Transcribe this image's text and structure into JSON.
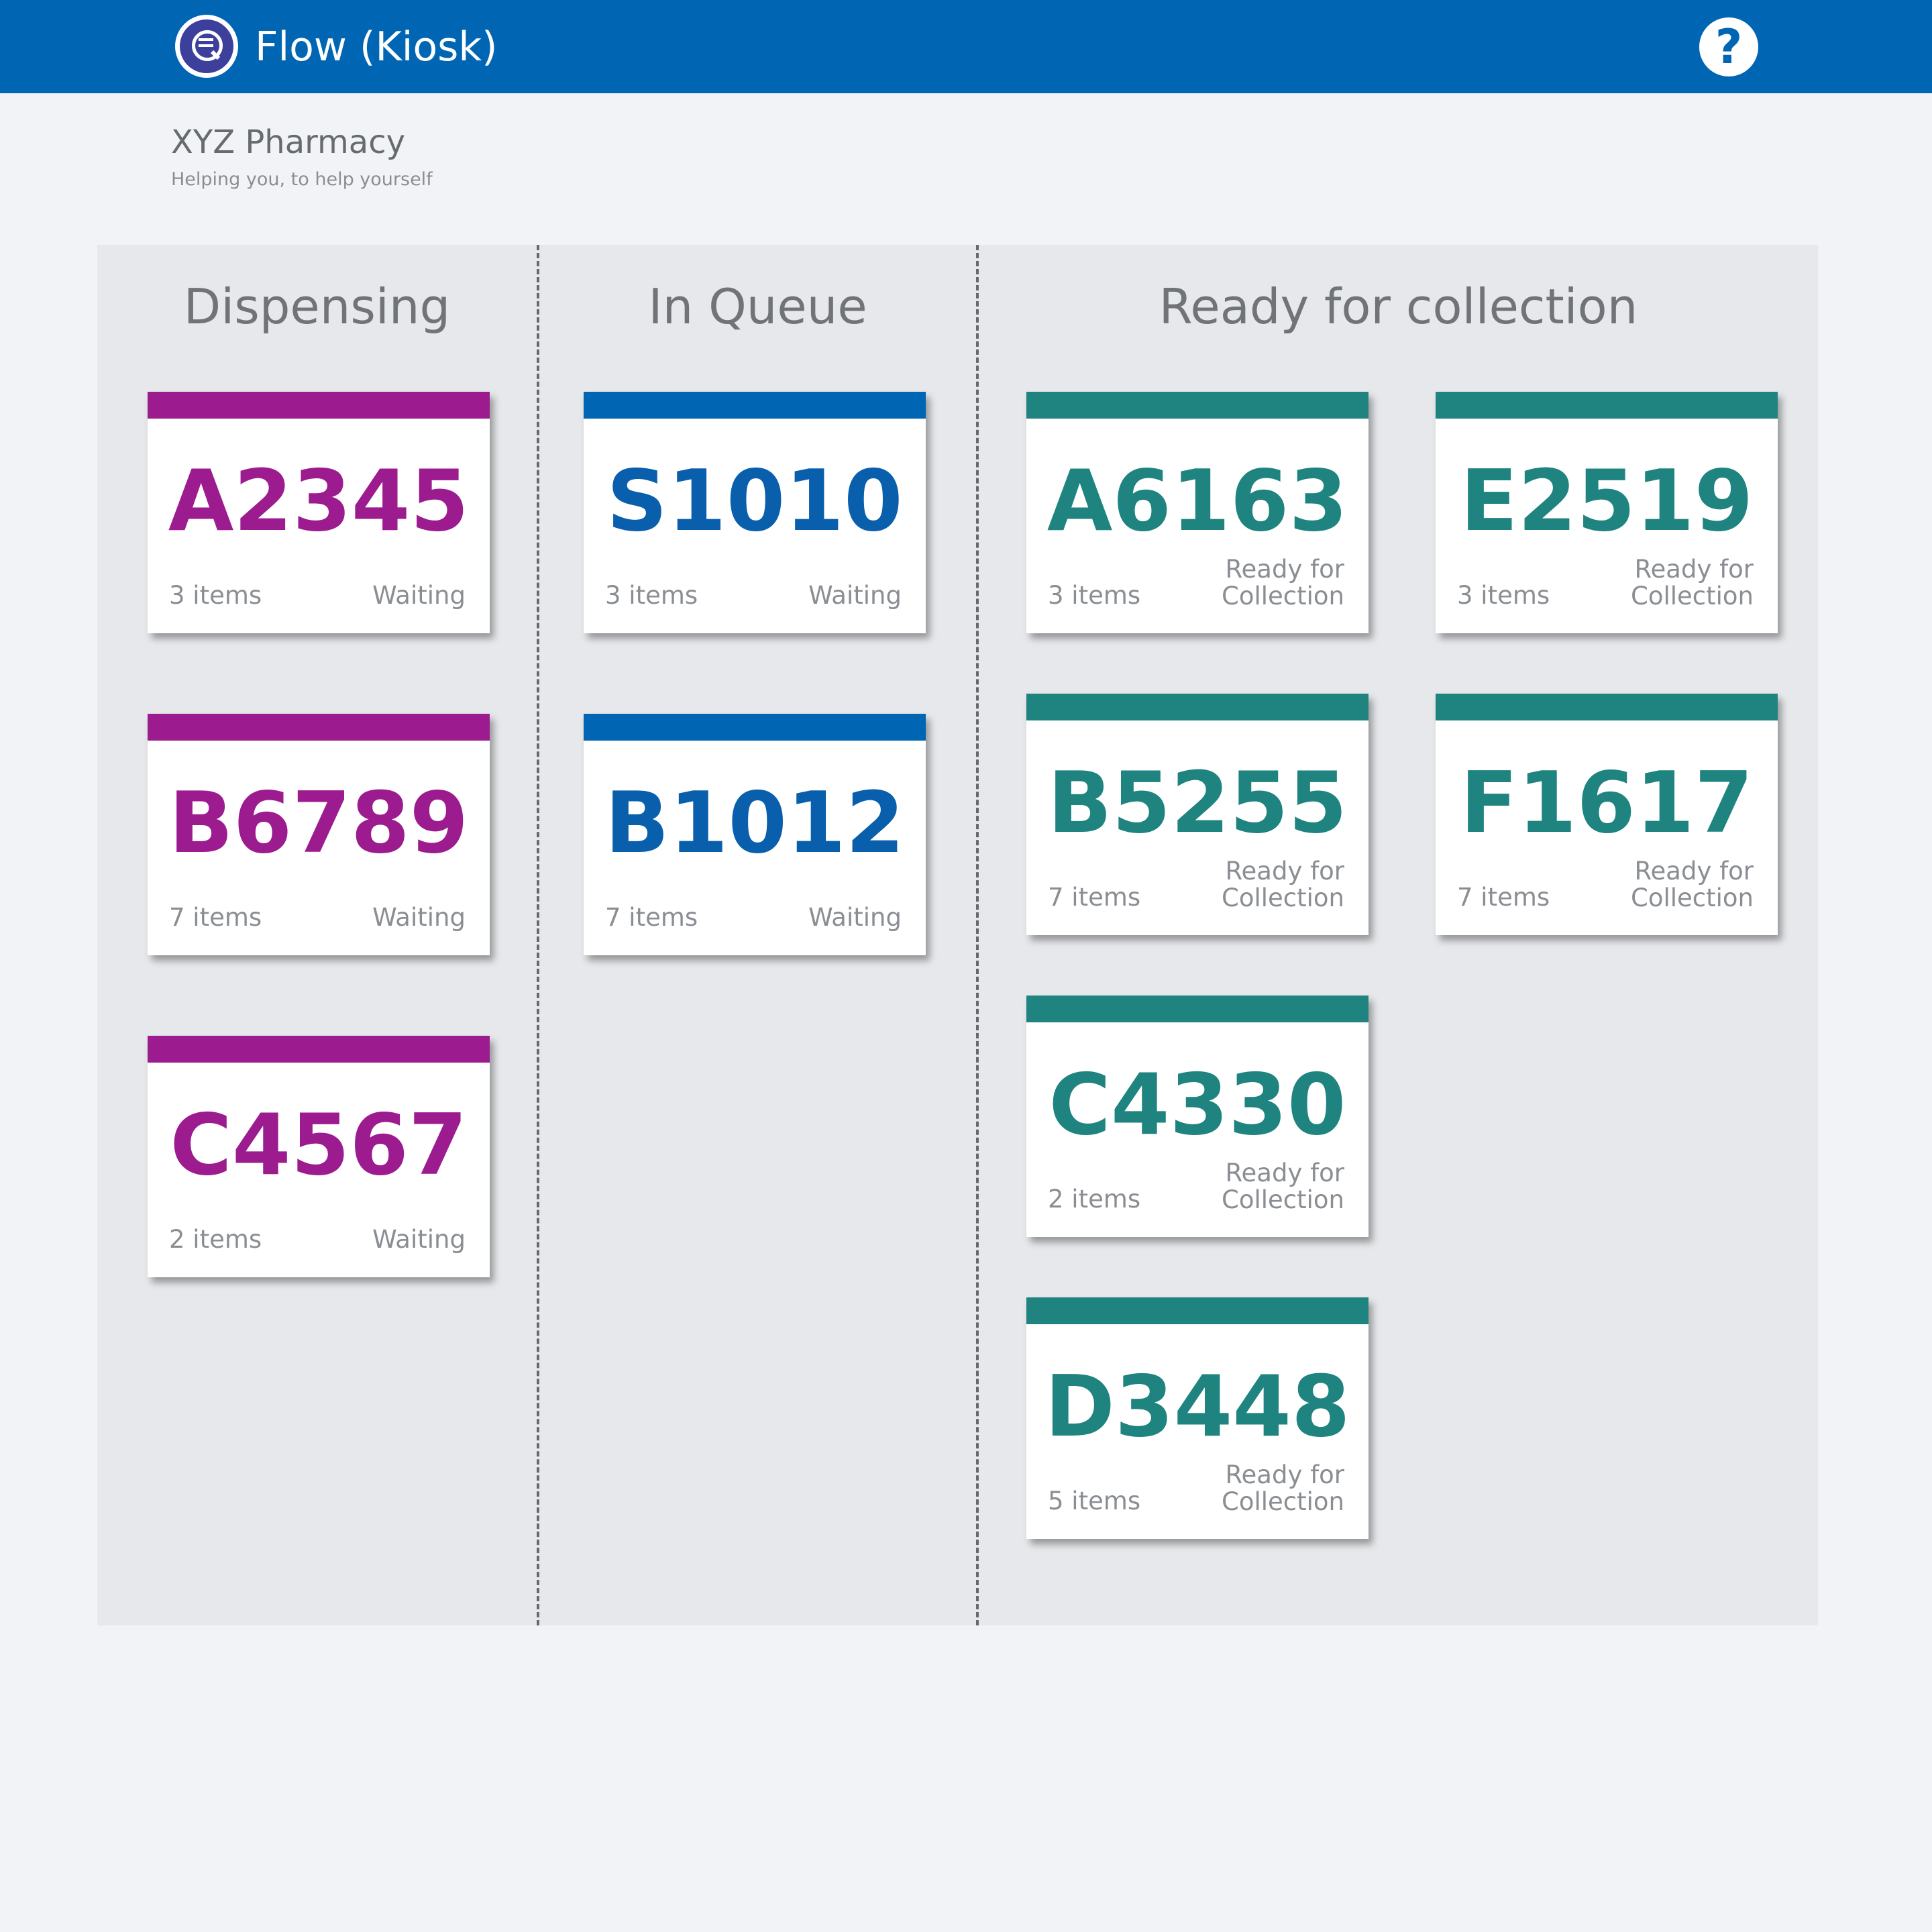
{
  "header": {
    "title": "Flow (Kiosk)",
    "help_label": "?"
  },
  "pharmacy": {
    "name": "XYZ Pharmacy",
    "tagline": "Helping you, to help yourself"
  },
  "columns": [
    {
      "title": "Dispensing",
      "cards": [
        {
          "code": "A2345",
          "items": "3 items",
          "status": "Waiting"
        },
        {
          "code": "B6789",
          "items": "7 items",
          "status": "Waiting"
        },
        {
          "code": "C4567",
          "items": "2 items",
          "status": "Waiting"
        }
      ]
    },
    {
      "title": "In Queue",
      "cards": [
        {
          "code": "S1010",
          "items": "3 items",
          "status": "Waiting"
        },
        {
          "code": "B1012",
          "items": "7 items",
          "status": "Waiting"
        }
      ]
    },
    {
      "title": "Ready for collection",
      "cards": [
        {
          "code": "A6163",
          "items": "3 items",
          "status": "Ready for Collection"
        },
        {
          "code": "E2519",
          "items": "3 items",
          "status": "Ready for Collection"
        },
        {
          "code": "B5255",
          "items": "7 items",
          "status": "Ready for Collection"
        },
        {
          "code": "F1617",
          "items": "7 items",
          "status": "Ready for Collection"
        },
        {
          "code": "C4330",
          "items": "2 items",
          "status": "Ready for Collection"
        },
        {
          "code": "D3448",
          "items": "5 items",
          "status": "Ready for Collection"
        }
      ]
    }
  ],
  "colors": {
    "header": "#0066b3",
    "dispensing": "#9c1b8f",
    "in_queue": "#0066b3",
    "ready": "#1f8480"
  }
}
